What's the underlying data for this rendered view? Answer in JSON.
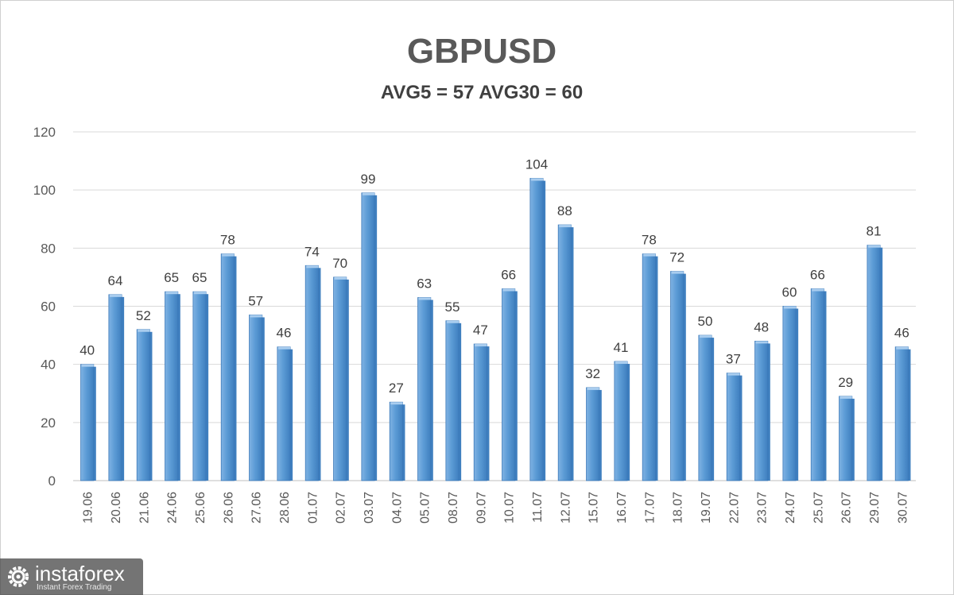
{
  "chart_data": {
    "type": "bar",
    "title": "GBPUSD",
    "subtitle": "AVG5 = 57 AVG30 = 60",
    "categories": [
      "19.06",
      "20.06",
      "21.06",
      "24.06",
      "25.06",
      "26.06",
      "27.06",
      "28.06",
      "01.07",
      "02.07",
      "03.07",
      "04.07",
      "05.07",
      "08.07",
      "09.07",
      "10.07",
      "11.07",
      "12.07",
      "15.07",
      "16.07",
      "17.07",
      "18.07",
      "19.07",
      "22.07",
      "23.07",
      "24.07",
      "25.07",
      "26.07",
      "29.07",
      "30.07"
    ],
    "values": [
      40,
      64,
      52,
      65,
      65,
      78,
      57,
      46,
      74,
      70,
      99,
      27,
      63,
      55,
      47,
      66,
      104,
      88,
      32,
      41,
      78,
      72,
      50,
      37,
      48,
      60,
      66,
      29,
      81,
      46
    ],
    "ylim": [
      0,
      120
    ],
    "yticks": [
      0,
      20,
      40,
      60,
      80,
      100,
      120
    ],
    "grid": true,
    "data_labels": true,
    "colors": {
      "bar": "#5b9bd5",
      "bar_dark": "#3f7fbf",
      "bar_light": "#a9cdef",
      "grid": "#d9d9d9"
    }
  },
  "watermark": {
    "name": "instaforex",
    "tagline": "Instant Forex Trading",
    "icon": "gear-icon"
  }
}
